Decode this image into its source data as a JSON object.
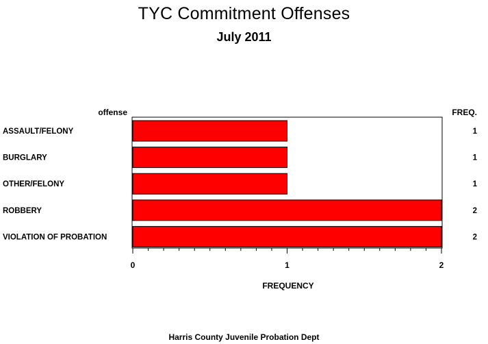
{
  "title": "TYC Commitment Offenses",
  "subtitle": "July 2011",
  "footer": "Harris County Juvenile Probation Dept",
  "colors": {
    "bar_fill": "#ff0000",
    "bar_stroke": "#000000",
    "frame": "#000000",
    "background": "#ffffff"
  },
  "chart_data": {
    "type": "bar",
    "orientation": "horizontal",
    "title": "TYC Commitment Offenses",
    "subtitle": "July 2011",
    "category_axis_label": "offense",
    "value_axis_label": "FREQUENCY",
    "freq_column_label": "FREQ.",
    "categories": [
      "ASSAULT/FELONY",
      "BURGLARY",
      "OTHER/FELONY",
      "ROBBERY",
      "VIOLATION OF PROBATION"
    ],
    "values": [
      1,
      1,
      1,
      2,
      2
    ],
    "xlim": [
      0,
      2
    ],
    "major_ticks": [
      0,
      1,
      2
    ],
    "minor_ticks_per_interval": 9,
    "grid": false,
    "legend": false
  }
}
